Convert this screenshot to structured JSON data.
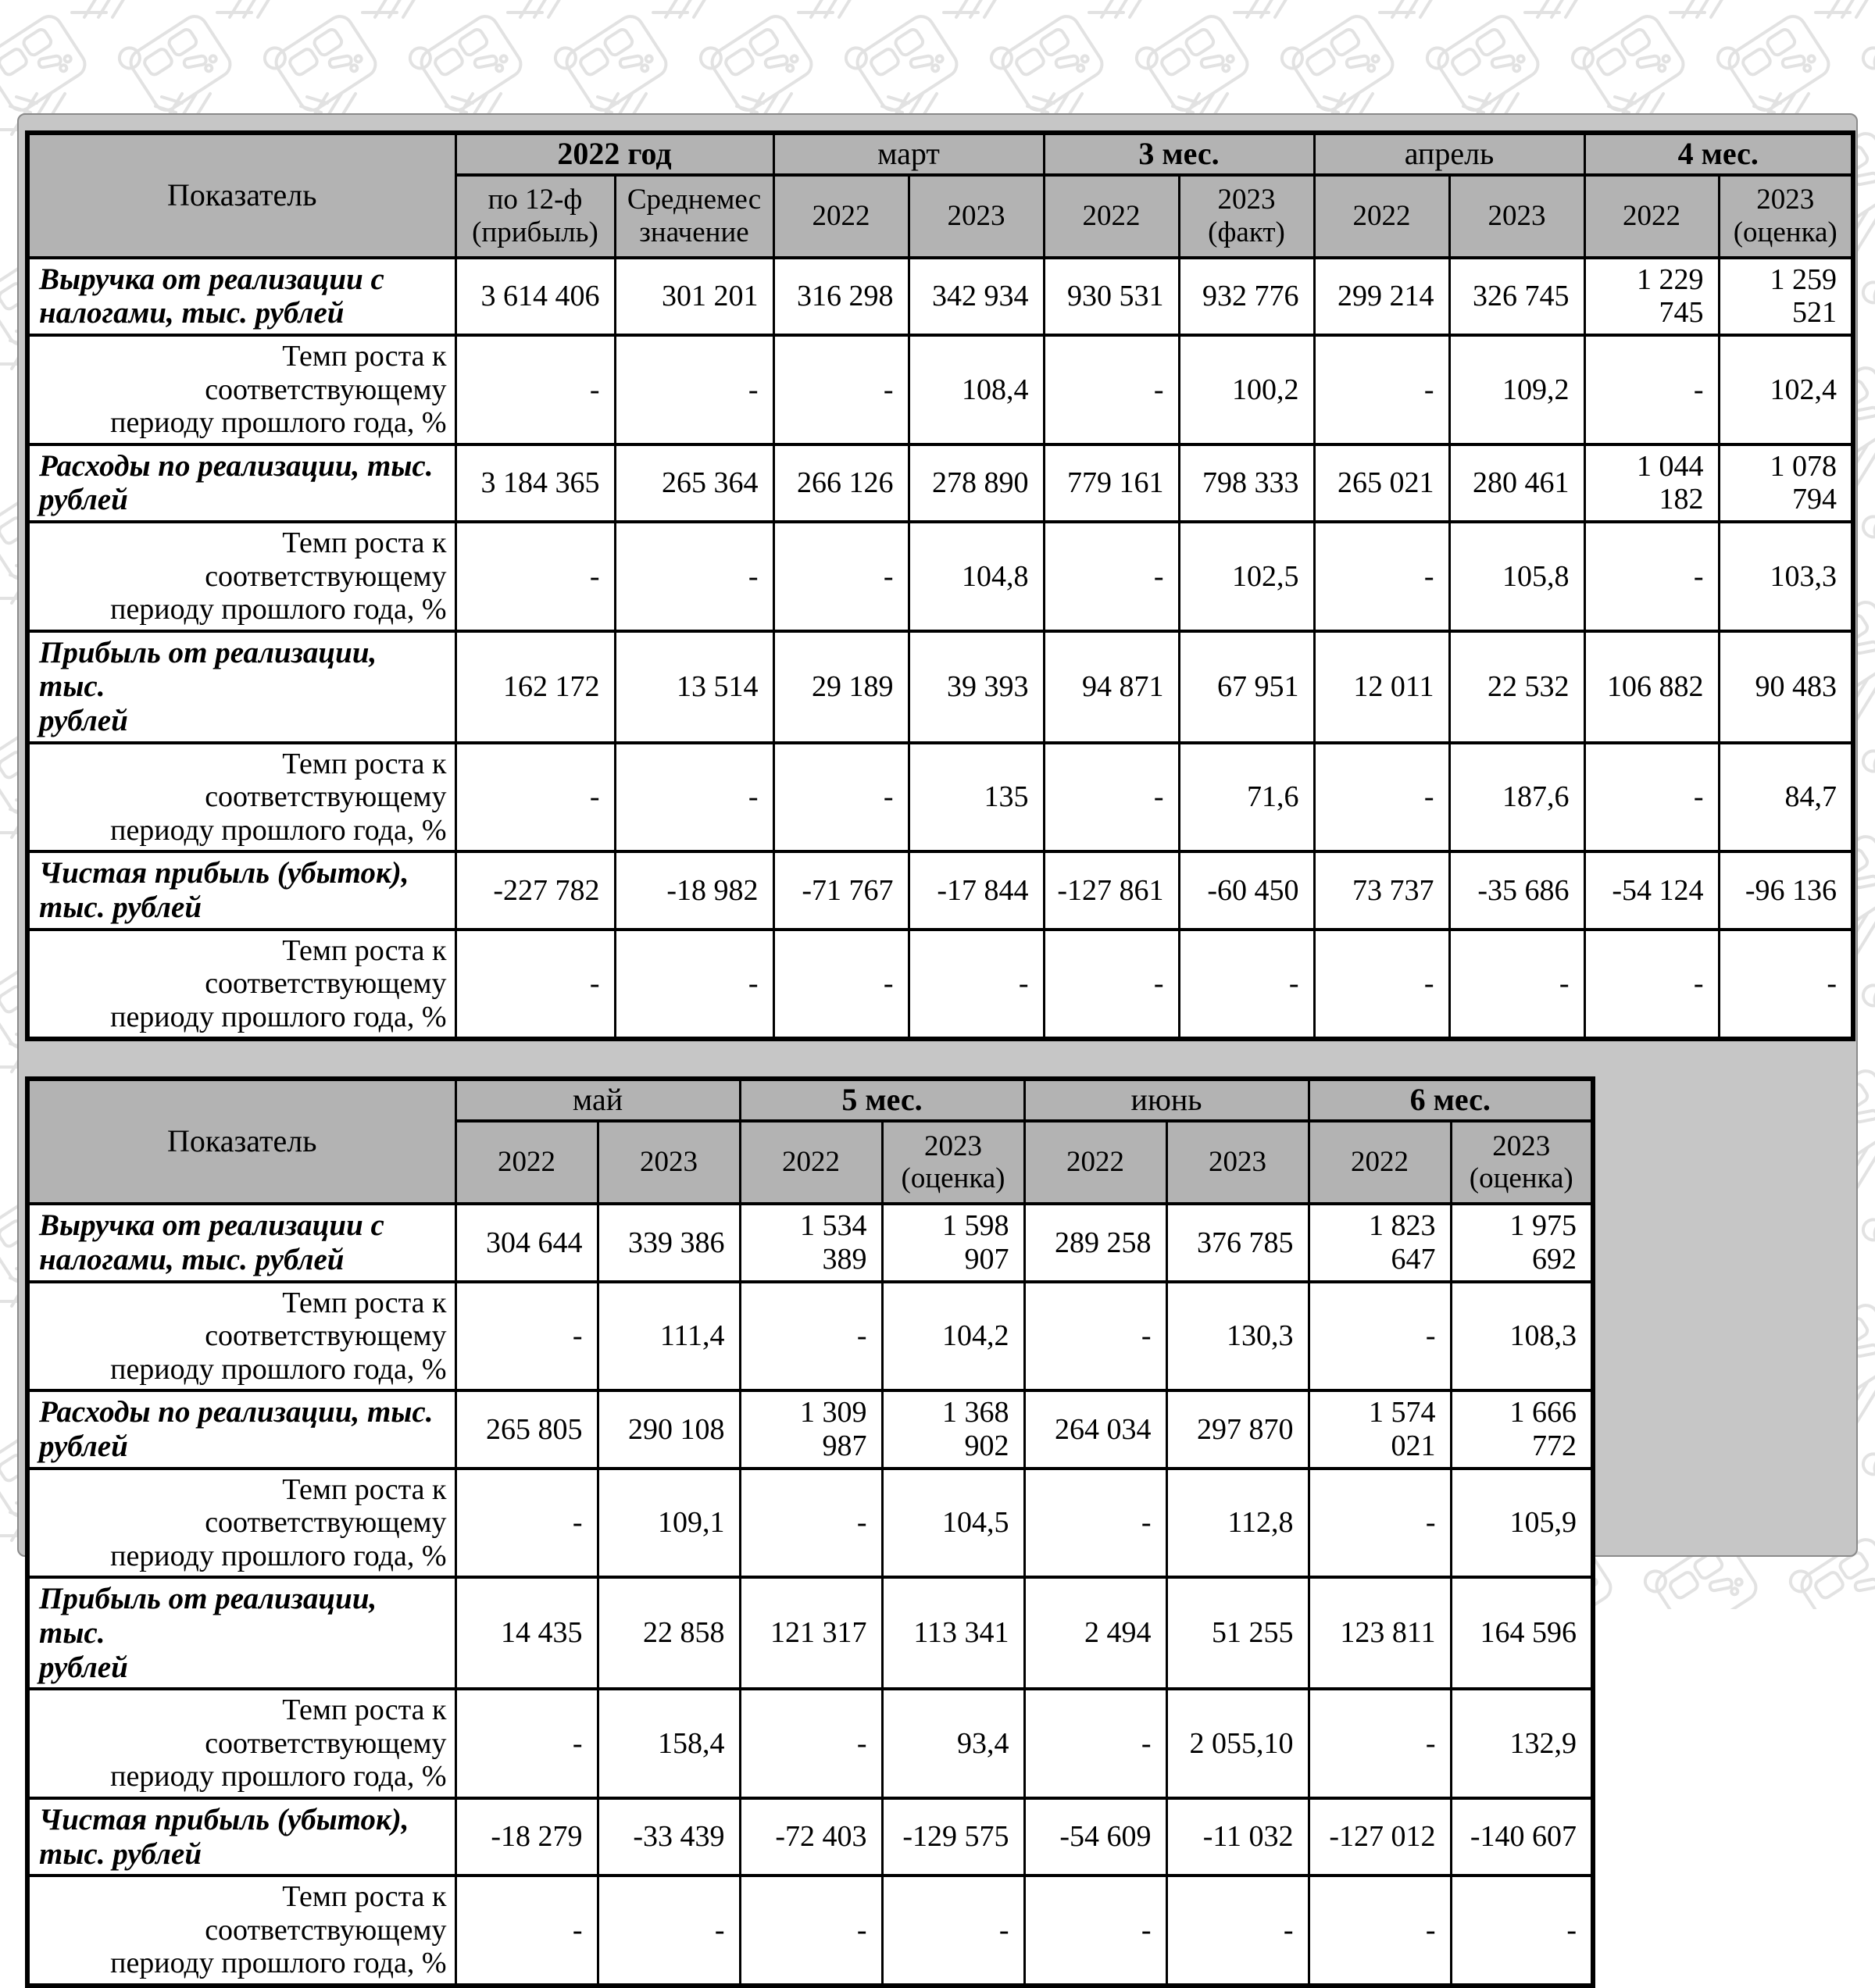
{
  "colors": {
    "panel_background": "#c6c6c6",
    "header_cell_background": "#b3b3b3",
    "table_border": "#000000",
    "pattern_line": "#e2e2e2"
  },
  "background": {
    "pattern_icons": [
      "camera-device-outline-icon",
      "diagonal-hatch-icon"
    ]
  },
  "tables": [
    {
      "col_header_label": "Показатель",
      "groups": [
        {
          "label": "2022 год",
          "bold": true,
          "cols": [
            "по 12-ф\n(прибыль)",
            "Среднемес\nзначение"
          ]
        },
        {
          "label": "март",
          "bold": false,
          "cols": [
            "2022",
            "2023"
          ]
        },
        {
          "label": "3 мес.",
          "bold": true,
          "cols": [
            "2022",
            "2023\n(факт)"
          ]
        },
        {
          "label": "апрель",
          "bold": false,
          "cols": [
            "2022",
            "2023"
          ]
        },
        {
          "label": "4 мес.",
          "bold": true,
          "cols": [
            "2022",
            "2023\n(оценка)"
          ]
        }
      ],
      "rows": [
        {
          "style": "indicator",
          "label": "Выручка от реализации с\nналогами, тыс. рублей",
          "values": [
            "3 614 406",
            "301 201",
            "316 298",
            "342 934",
            "930 531",
            "932 776",
            "299 214",
            "326 745",
            "1 229\n745",
            "1 259\n521"
          ]
        },
        {
          "style": "growth",
          "label": "Темп роста к соответствующему\nпериоду прошлого года, %",
          "values": [
            "-",
            "-",
            "-",
            "108,4",
            "-",
            "100,2",
            "-",
            "109,2",
            "-",
            "102,4"
          ]
        },
        {
          "style": "indicator",
          "label": "Расходы по реализации, тыс.\nрублей",
          "values": [
            "3 184 365",
            "265 364",
            "266 126",
            "278 890",
            "779 161",
            "798 333",
            "265 021",
            "280 461",
            "1 044\n182",
            "1 078\n794"
          ]
        },
        {
          "style": "growth",
          "label": "Темп роста к соответствующему\nпериоду прошлого года, %",
          "values": [
            "-",
            "-",
            "-",
            "104,8",
            "-",
            "102,5",
            "-",
            "105,8",
            "-",
            "103,3"
          ]
        },
        {
          "style": "indicator",
          "label": "Прибыль от реализации, тыс.\nрублей",
          "values": [
            "162 172",
            "13 514",
            "29 189",
            "39 393",
            "94 871",
            "67 951",
            "12 011",
            "22 532",
            "106 882",
            "90 483"
          ]
        },
        {
          "style": "growth",
          "label": "Темп роста к соответствующему\nпериоду прошлого года, %",
          "values": [
            "-",
            "-",
            "-",
            "135",
            "-",
            "71,6",
            "-",
            "187,6",
            "-",
            "84,7"
          ]
        },
        {
          "style": "indicator",
          "label": "Чистая прибыль (убыток),\nтыс. рублей",
          "values": [
            "-227 782",
            "-18 982",
            "-71 767",
            "-17 844",
            "-127 861",
            "-60 450",
            "73 737",
            "-35 686",
            "-54 124",
            "-96 136"
          ]
        },
        {
          "style": "growth",
          "label": "Темп роста к соответствующему\nпериоду прошлого года, %",
          "values": [
            "-",
            "-",
            "-",
            "-",
            "-",
            "-",
            "-",
            "-",
            "-",
            "-"
          ]
        }
      ]
    },
    {
      "col_header_label": "Показатель",
      "groups": [
        {
          "label": "май",
          "bold": false,
          "cols": [
            "2022",
            "2023"
          ]
        },
        {
          "label": "5 мес.",
          "bold": true,
          "cols": [
            "2022",
            "2023\n(оценка)"
          ]
        },
        {
          "label": "июнь",
          "bold": false,
          "cols": [
            "2022",
            "2023"
          ]
        },
        {
          "label": "6 мес.",
          "bold": true,
          "cols": [
            "2022",
            "2023\n(оценка)"
          ]
        }
      ],
      "rows": [
        {
          "style": "indicator",
          "label": "Выручка от реализации с\nналогами, тыс. рублей",
          "values": [
            "304 644",
            "339 386",
            "1 534\n389",
            "1 598\n907",
            "289 258",
            "376 785",
            "1 823\n647",
            "1 975\n692"
          ]
        },
        {
          "style": "growth",
          "label": "Темп роста к соответствующему\nпериоду прошлого года, %",
          "values": [
            "-",
            "111,4",
            "-",
            "104,2",
            "-",
            "130,3",
            "-",
            "108,3"
          ]
        },
        {
          "style": "indicator",
          "label": "Расходы по реализации, тыс.\nрублей",
          "values": [
            "265 805",
            "290 108",
            "1 309\n987",
            "1 368\n902",
            "264 034",
            "297 870",
            "1 574\n021",
            "1 666\n772"
          ]
        },
        {
          "style": "growth",
          "label": "Темп роста к соответствующему\nпериоду прошлого года, %",
          "values": [
            "-",
            "109,1",
            "-",
            "104,5",
            "-",
            "112,8",
            "-",
            "105,9"
          ]
        },
        {
          "style": "indicator",
          "label": "Прибыль от реализации, тыс.\nрублей",
          "values": [
            "14 435",
            "22 858",
            "121 317",
            "113 341",
            "2 494",
            "51 255",
            "123 811",
            "164 596"
          ]
        },
        {
          "style": "growth",
          "label": "Темп роста к соответствующему\nпериоду прошлого года, %",
          "values": [
            "-",
            "158,4",
            "-",
            "93,4",
            "-",
            "2 055,10",
            "-",
            "132,9"
          ]
        },
        {
          "style": "indicator",
          "label": "Чистая прибыль (убыток),\nтыс. рублей",
          "values": [
            "-18 279",
            "-33 439",
            "-72 403",
            "-129 575",
            "-54 609",
            "-11 032",
            "-127 012",
            "-140 607"
          ]
        },
        {
          "style": "growth",
          "label": "Темп роста к соответствующему\nпериоду прошлого года, %",
          "values": [
            "-",
            "-",
            "-",
            "-",
            "-",
            "-",
            "-",
            "-"
          ]
        }
      ]
    }
  ]
}
